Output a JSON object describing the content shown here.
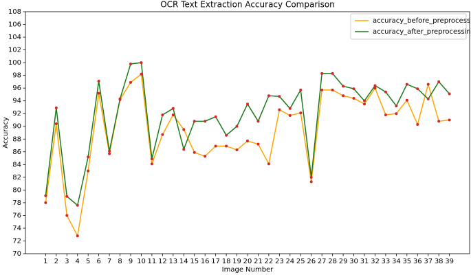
{
  "chart_data": {
    "type": "line",
    "title": "OCR Text Extraction Accuracy Comparison",
    "x_label": "Image Number",
    "y_label": "Accuracy",
    "x": [
      1,
      2,
      3,
      4,
      5,
      6,
      7,
      8,
      9,
      10,
      11,
      12,
      13,
      14,
      15,
      16,
      17,
      18,
      19,
      20,
      21,
      22,
      23,
      24,
      25,
      26,
      27,
      28,
      29,
      30,
      31,
      32,
      33,
      34,
      35,
      36,
      37,
      38,
      39
    ],
    "series": [
      {
        "name": "accuracy_before_preprocessing",
        "color": "#ffa500",
        "values": [
          78.0,
          90.4,
          76.0,
          72.8,
          83.0,
          95.2,
          85.7,
          94.2,
          96.9,
          98.2,
          84.1,
          88.7,
          91.8,
          89.5,
          85.9,
          85.3,
          86.9,
          86.9,
          86.3,
          87.7,
          87.2,
          84.1,
          92.6,
          91.7,
          92.1,
          81.3,
          95.7,
          95.7,
          94.8,
          94.4,
          93.5,
          96.0,
          91.8,
          92.0,
          94.1,
          90.3,
          96.6,
          90.8,
          91.0
        ]
      },
      {
        "name": "accuracy_after_preprocessing",
        "color": "#1a7a1a",
        "values": [
          79.1,
          92.9,
          79.0,
          77.6,
          85.2,
          97.1,
          86.1,
          94.3,
          99.8,
          100.0,
          84.9,
          91.8,
          92.8,
          86.4,
          90.8,
          90.8,
          91.5,
          88.6,
          90.0,
          93.5,
          90.8,
          94.8,
          94.7,
          92.8,
          95.7,
          82.0,
          98.3,
          98.3,
          96.3,
          95.9,
          94.0,
          96.4,
          95.4,
          93.2,
          96.6,
          95.9,
          94.3,
          97.0,
          95.1
        ]
      }
    ],
    "marker_color": "#d62728",
    "xlim": [
      -0.9,
      40.9
    ],
    "xticks": [
      1,
      2,
      3,
      4,
      5,
      6,
      7,
      8,
      9,
      10,
      11,
      12,
      13,
      14,
      15,
      16,
      17,
      18,
      19,
      20,
      21,
      22,
      23,
      24,
      25,
      26,
      27,
      28,
      29,
      30,
      31,
      32,
      33,
      34,
      35,
      36,
      37,
      38,
      39
    ],
    "ylim": [
      70,
      108
    ],
    "yticks": [
      70,
      72,
      74,
      76,
      78,
      80,
      82,
      84,
      86,
      88,
      90,
      92,
      94,
      96,
      98,
      100,
      102,
      104,
      106,
      108
    ],
    "legend": "upper right",
    "grid": false
  }
}
